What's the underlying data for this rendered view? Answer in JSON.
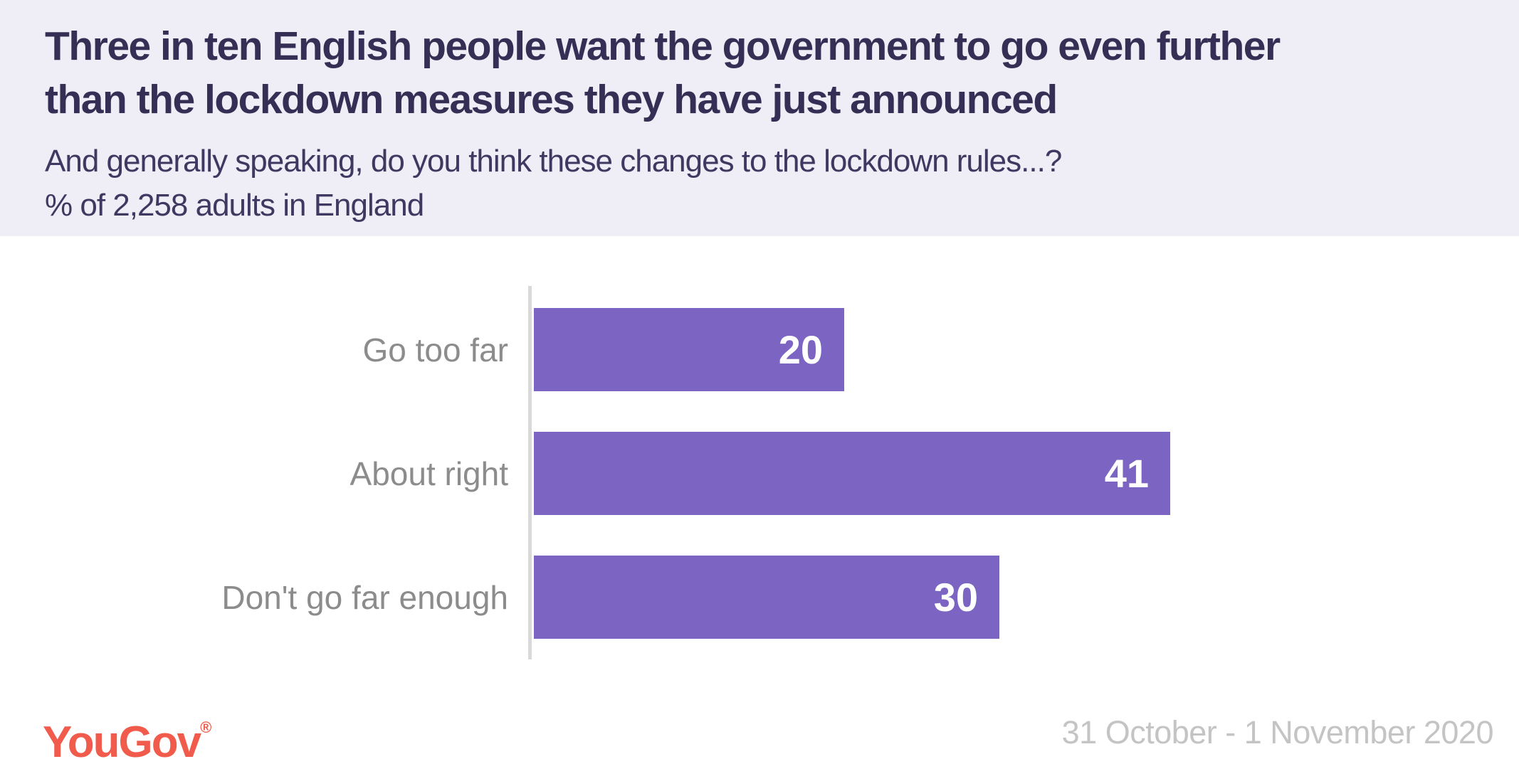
{
  "header": {
    "title_line1": "Three in ten English people want the government to go even further",
    "title_line2": "than the lockdown measures they have just announced",
    "subtitle_question": "And generally speaking, do you think these changes to the lockdown rules...?",
    "subtitle_sample": "% of 2,258 adults in England"
  },
  "chart_data": {
    "type": "bar",
    "orientation": "horizontal",
    "title": "Three in ten English people want the government to go even further than the lockdown measures they have just announced",
    "subtitle": "And generally speaking, do you think these changes to the lockdown rules...?",
    "sample_note": "% of 2,258 adults in England",
    "categories": [
      "Go too far",
      "About right",
      "Don't go far enough"
    ],
    "values": [
      20,
      41,
      30
    ],
    "value_unit": "%",
    "xlim": [
      0,
      45
    ],
    "grid": false,
    "legend": false,
    "bar_color": "#7B64C2",
    "category_label_color": "#8C8C8C",
    "value_label_color": "#FFFFFF"
  },
  "footer": {
    "logo_text": "YouGov",
    "logo_registered": "®",
    "date_range": "31 October - 1 November 2020"
  },
  "colors": {
    "header_bg": "#EFEDF6",
    "title": "#362F55",
    "subtitle": "#3F3861",
    "bar": "#7B64C2",
    "axis": "#D9D9D9",
    "logo": "#F15B4B",
    "date": "#C4C4C4"
  }
}
